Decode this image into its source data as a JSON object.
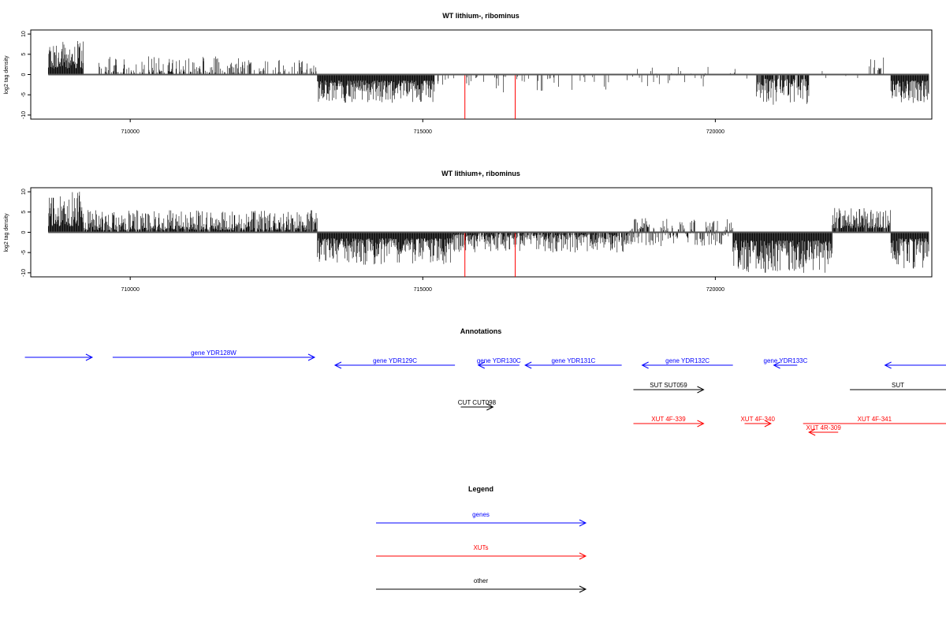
{
  "chart_data": [
    {
      "type": "bar",
      "title": "WT lithium-, ribominus",
      "ylabel": "log2 tag density",
      "xlim": [
        708300,
        723700
      ],
      "ylim": [
        -11,
        11
      ],
      "xticks": [
        710000,
        715000,
        720000
      ],
      "xtick_labels": [
        "710000",
        "715000",
        "720000"
      ],
      "yticks": [
        10,
        5,
        0,
        -5,
        -10
      ],
      "ytick_labels": [
        "10",
        "5",
        "0",
        "-5",
        "-10"
      ],
      "grid": false,
      "baseline_color": "#555555",
      "bar_color": "#000000",
      "highlight_color": "#ff0000",
      "segments": [
        {
          "from": 708600,
          "to": 709200,
          "min": 1.5,
          "max": 8.5,
          "density": 1.0
        },
        {
          "from": 709400,
          "to": 711900,
          "min": 0.5,
          "max": 4.5,
          "density": 0.35
        },
        {
          "from": 711900,
          "to": 713200,
          "min": 0.5,
          "max": 3.8,
          "density": 0.3
        },
        {
          "from": 713200,
          "to": 715200,
          "min": -7.0,
          "max": -1.5,
          "density": 1.0
        },
        {
          "from": 715200,
          "to": 718500,
          "min": -4.5,
          "max": -0.5,
          "density": 0.1
        },
        {
          "from": 718500,
          "to": 720600,
          "min": -3.0,
          "max": 2.0,
          "density": 0.12
        },
        {
          "from": 720700,
          "to": 721600,
          "min": -7.5,
          "max": -1.0,
          "density": 0.85
        },
        {
          "from": 721600,
          "to": 722600,
          "min": -1.5,
          "max": 1.5,
          "density": 0.05
        },
        {
          "from": 722600,
          "to": 722900,
          "min": 1.0,
          "max": 4.5,
          "density": 0.3
        },
        {
          "from": 723000,
          "to": 723650,
          "min": -7.0,
          "max": -1.5,
          "density": 1.0
        }
      ],
      "highlights": [
        {
          "x": 715720,
          "y": -11
        },
        {
          "x": 716580,
          "y": -11
        }
      ]
    },
    {
      "type": "bar",
      "title": "WT lithium+, ribominus",
      "ylabel": "log2 tag density",
      "xlim": [
        708300,
        723700
      ],
      "ylim": [
        -11,
        11
      ],
      "xticks": [
        710000,
        715000,
        720000
      ],
      "xtick_labels": [
        "710000",
        "715000",
        "720000"
      ],
      "yticks": [
        10,
        5,
        0,
        -5,
        -10
      ],
      "ytick_labels": [
        "10",
        "5",
        "0",
        "-5",
        "-10"
      ],
      "grid": false,
      "baseline_color": "#555555",
      "bar_color": "#000000",
      "highlight_color": "#ff0000",
      "segments": [
        {
          "from": 708600,
          "to": 709200,
          "min": 1.5,
          "max": 10.0,
          "density": 1.0
        },
        {
          "from": 709200,
          "to": 713200,
          "min": 0.5,
          "max": 5.5,
          "density": 0.9
        },
        {
          "from": 713200,
          "to": 715500,
          "min": -8.0,
          "max": -1.5,
          "density": 1.0
        },
        {
          "from": 715500,
          "to": 718500,
          "min": -5.0,
          "max": -0.5,
          "density": 0.8
        },
        {
          "from": 718500,
          "to": 720300,
          "min": -3.5,
          "max": 3.5,
          "density": 0.8
        },
        {
          "from": 720300,
          "to": 722000,
          "min": -10.0,
          "max": -2.0,
          "density": 1.0
        },
        {
          "from": 722000,
          "to": 723000,
          "min": 1.0,
          "max": 6.0,
          "density": 0.9
        },
        {
          "from": 723000,
          "to": 723650,
          "min": -9.0,
          "max": -1.5,
          "density": 1.0
        }
      ],
      "highlights": [
        {
          "x": 715720,
          "y": -11
        },
        {
          "x": 716580,
          "y": -11
        }
      ]
    }
  ],
  "annotations": {
    "title": "Annotations",
    "tracks": [
      {
        "label": "",
        "color": "#0000ff",
        "x1": 708200,
        "x2": 709350,
        "row": 0,
        "dir": "right"
      },
      {
        "label": "gene YDR128W",
        "color": "#0000ff",
        "x1": 709700,
        "x2": 713150,
        "row": 0,
        "dir": "right"
      },
      {
        "label": "gene YDR129C",
        "color": "#0000ff",
        "x1": 713500,
        "x2": 715550,
        "row": 1,
        "dir": "left"
      },
      {
        "label": "gene YDR130C",
        "color": "#0000ff",
        "x1": 715950,
        "x2": 716650,
        "row": 1,
        "dir": "left"
      },
      {
        "label": "gene YDR131C",
        "color": "#0000ff",
        "x1": 716750,
        "x2": 718400,
        "row": 1,
        "dir": "left"
      },
      {
        "label": "gene YDR132C",
        "color": "#0000ff",
        "x1": 718750,
        "x2": 720300,
        "row": 1,
        "dir": "left"
      },
      {
        "label": "gene YDR133C",
        "color": "#0000ff",
        "x1": 721000,
        "x2": 721400,
        "row": 1,
        "dir": "left"
      },
      {
        "label": "",
        "color": "#0000ff",
        "x1": 722900,
        "x2": 724400,
        "row": 1,
        "dir": "left"
      },
      {
        "label": "SUT SUT059",
        "color": "#000000",
        "x1": 718600,
        "x2": 719800,
        "row": 2,
        "dir": "right"
      },
      {
        "label": "SUT",
        "color": "#000000",
        "x1": 722300,
        "x2": 724400,
        "row": 2,
        "dir": "right"
      },
      {
        "label": "CUT CUT098",
        "color": "#000000",
        "x1": 715650,
        "x2": 716200,
        "row": 3,
        "dir": "right"
      },
      {
        "label": "XUT 4F-339",
        "color": "#ff0000",
        "x1": 718600,
        "x2": 719800,
        "row": 4,
        "dir": "right"
      },
      {
        "label": "XUT 4F-340",
        "color": "#ff0000",
        "x1": 720500,
        "x2": 720950,
        "row": 4,
        "dir": "right"
      },
      {
        "label": "XUT 4F-341",
        "color": "#ff0000",
        "x1": 721500,
        "x2": 724100,
        "row": 4,
        "dir": "right"
      },
      {
        "label": "XUT 4R-309",
        "color": "#ff0000",
        "x1": 721600,
        "x2": 722100,
        "row": 5,
        "dir": "left"
      }
    ]
  },
  "legend": {
    "title": "Legend",
    "items": [
      {
        "label": "genes",
        "color": "#0000ff"
      },
      {
        "label": "XUTs",
        "color": "#ff0000"
      },
      {
        "label": "other",
        "color": "#000000"
      }
    ]
  }
}
